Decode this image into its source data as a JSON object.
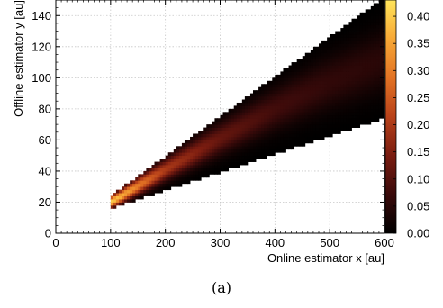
{
  "caption": "(a)",
  "chart_data": {
    "type": "heatmap",
    "title": "",
    "xlabel": "Online estimator x [au]",
    "ylabel": "Offline estimator y [au]",
    "xlim": [
      0,
      600
    ],
    "ylim": [
      0,
      150
    ],
    "xticks": [
      0,
      100,
      200,
      300,
      400,
      500,
      600
    ],
    "yticks": [
      0,
      20,
      40,
      60,
      80,
      100,
      120,
      140
    ],
    "grid": true,
    "colorbar": {
      "ticks": [
        "0.00",
        "0.05",
        "0.10",
        "0.15",
        "0.20",
        "0.25",
        "0.30",
        "0.35",
        "0.40"
      ],
      "range": [
        0,
        0.43
      ],
      "colormap": [
        "#000000",
        "#3a0a0a",
        "#7a1c10",
        "#b8421a",
        "#e27224",
        "#f7a836",
        "#ffe45a"
      ]
    },
    "support_region": {
      "x_range": [
        100,
        600
      ],
      "upper_edge": [
        [
          100,
          24
        ],
        [
          600,
          152
        ]
      ],
      "lower_edge": [
        [
          100,
          16
        ],
        [
          600,
          74
        ]
      ]
    },
    "ridge": {
      "points": [
        [
          100,
          20
        ],
        [
          200,
          41
        ],
        [
          300,
          61
        ],
        [
          400,
          80
        ],
        [
          500,
          97
        ],
        [
          600,
          112
        ]
      ],
      "peak_values": [
        0.41,
        0.2,
        0.12,
        0.08,
        0.06,
        0.05
      ]
    }
  }
}
